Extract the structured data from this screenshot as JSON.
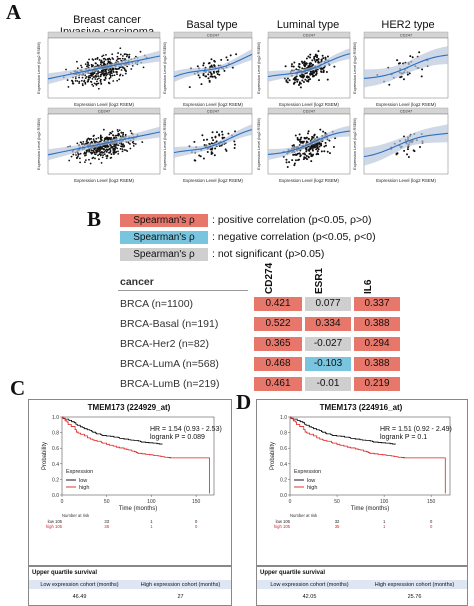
{
  "panels": {
    "a": "A",
    "b": "B",
    "c": "C",
    "d": "D"
  },
  "section_a": {
    "columns": [
      {
        "title_line1": "Breast cancer",
        "title_line2": "Invasive carcinoma",
        "strip_top": "",
        "strip_bottom": "CD247"
      },
      {
        "title_line1": "Basal type",
        "title_line2": "",
        "strip_top": "CD247",
        "strip_bottom": "CD247"
      },
      {
        "title_line1": "Luminal type",
        "title_line2": "",
        "strip_top": "CD247",
        "strip_bottom": "CD247"
      },
      {
        "title_line1": "HER2 type",
        "title_line2": "",
        "strip_top": "CD247",
        "strip_bottom": "CD247"
      }
    ],
    "xlabel": "Expression Level (log2 RSEM)",
    "ylabel": "Expression Level (log2 RSEM)"
  },
  "section_b": {
    "legend": [
      {
        "box": "Spearman's ρ",
        "color": "#e8776b",
        "desc": ": positive correlation (p<0.05, ρ>0)"
      },
      {
        "box": "Spearman's ρ",
        "color": "#79c4de",
        "desc": ": negative correlation (p<0.05, ρ<0)"
      },
      {
        "box": "Spearman's ρ",
        "color": "#cfcfcf",
        "desc": ": not significant (p>0.05)"
      }
    ],
    "table": {
      "header": "cancer",
      "genes": [
        "CD274",
        "ESR1",
        "IL6"
      ],
      "rows": [
        {
          "label": "BRCA (n=1100)",
          "values": [
            "0.421",
            "0.077",
            "0.337"
          ],
          "colors": [
            "#e8776b",
            "#cfcfcf",
            "#e8776b"
          ]
        },
        {
          "label": "BRCA-Basal (n=191)",
          "values": [
            "0.522",
            "0.334",
            "0.388"
          ],
          "colors": [
            "#e8776b",
            "#e8776b",
            "#e8776b"
          ]
        },
        {
          "label": "BRCA-Her2 (n=82)",
          "values": [
            "0.365",
            "-0.027",
            "0.294"
          ],
          "colors": [
            "#e8776b",
            "#cfcfcf",
            "#e8776b"
          ]
        },
        {
          "label": "BRCA-LumA (n=568)",
          "values": [
            "0.468",
            "-0.103",
            "0.388"
          ],
          "colors": [
            "#e8776b",
            "#79c4de",
            "#e8776b"
          ]
        },
        {
          "label": "BRCA-LumB (n=219)",
          "values": [
            "0.461",
            "-0.01",
            "0.219"
          ],
          "colors": [
            "#e8776b",
            "#cfcfcf",
            "#e8776b"
          ]
        }
      ]
    }
  },
  "section_c": {
    "title": "TMEM173 (224929_at)",
    "hr": "HR = 1.54 (0.93 - 2.53)",
    "logrank": "logrank P = 0.089",
    "ylabel": "Probability",
    "xlabel": "Time (months)",
    "legend_title": "Expression",
    "legend_low": "low",
    "legend_high": "high",
    "risk_label": "Number at risk",
    "risk_low": [
      "low 106",
      "33",
      "1",
      "0"
    ],
    "risk_high": [
      "high 105",
      "36",
      "1",
      "0"
    ],
    "uq_title": "Upper quartile survival",
    "uq_col1": "Low expression cohort (months)",
    "uq_col2": "High expression cohort (months)",
    "uq_val1": "46.49",
    "uq_val2": "27"
  },
  "section_d": {
    "title": "TMEM173 (224916_at)",
    "hr": "HR = 1.51 (0.92 - 2.49)",
    "logrank": "logrank P = 0.1",
    "ylabel": "Probability",
    "xlabel": "Time (months)",
    "legend_title": "Expression",
    "legend_low": "low",
    "legend_high": "high",
    "risk_label": "Number at risk",
    "risk_low": [
      "low 106",
      "32",
      "1",
      "0"
    ],
    "risk_high": [
      "high 105",
      "35",
      "1",
      "0"
    ],
    "uq_title": "Upper quartile survival",
    "uq_col1": "Low expression cohort (months)",
    "uq_col2": "High expression cohort (months)",
    "uq_val1": "42.05",
    "uq_val2": "25.76"
  },
  "km_axis": {
    "xticks": [
      "0",
      "50",
      "100",
      "150"
    ],
    "yticks": [
      "0.0",
      "0.2",
      "0.4",
      "0.6",
      "0.8",
      "1.0"
    ]
  },
  "colors": {
    "low": "#000000",
    "high": "#e02020",
    "fit": "#2b6fc4",
    "band": "#b9c8dc"
  }
}
